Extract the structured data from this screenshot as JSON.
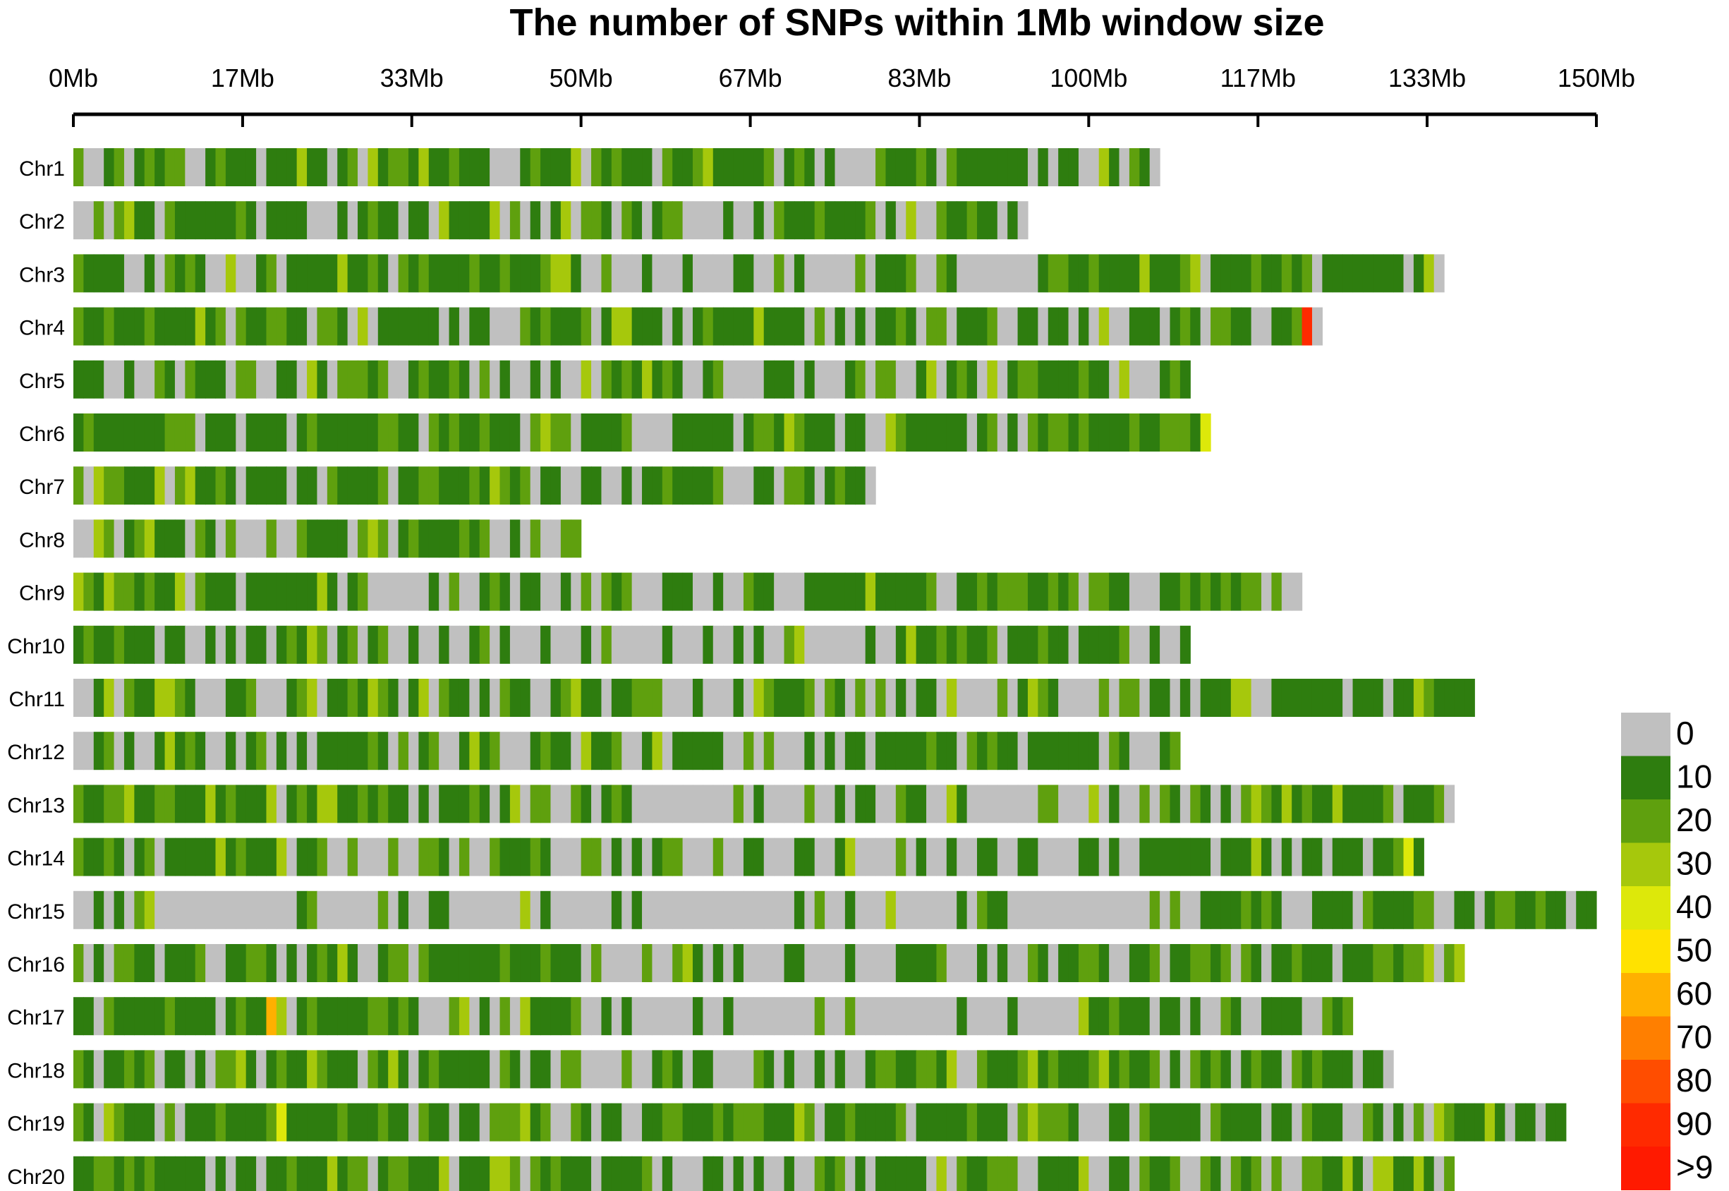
{
  "chart_data": {
    "type": "heatmap",
    "title": "The number of SNPs within 1Mb window size",
    "xlabel": "",
    "ylabel": "",
    "x_ticks": [
      "0Mb",
      "17Mb",
      "33Mb",
      "50Mb",
      "67Mb",
      "83Mb",
      "100Mb",
      "117Mb",
      "133Mb",
      "150Mb"
    ],
    "x_tick_values": [
      0,
      16.67,
      33.33,
      50,
      66.67,
      83.33,
      100,
      116.67,
      133.33,
      150
    ],
    "xlim": [
      0,
      150
    ],
    "bin_size_mb": 1,
    "chromosomes": [
      {
        "name": "Chr1",
        "length_mb": 107
      },
      {
        "name": "Chr2",
        "length_mb": 94
      },
      {
        "name": "Chr3",
        "length_mb": 135
      },
      {
        "name": "Chr4",
        "length_mb": 123
      },
      {
        "name": "Chr5",
        "length_mb": 110
      },
      {
        "name": "Chr6",
        "length_mb": 112
      },
      {
        "name": "Chr7",
        "length_mb": 79
      },
      {
        "name": "Chr8",
        "length_mb": 50
      },
      {
        "name": "Chr9",
        "length_mb": 121
      },
      {
        "name": "Chr10",
        "length_mb": 110
      },
      {
        "name": "Chr11",
        "length_mb": 138
      },
      {
        "name": "Chr12",
        "length_mb": 109
      },
      {
        "name": "Chr13",
        "length_mb": 136
      },
      {
        "name": "Chr14",
        "length_mb": 133
      },
      {
        "name": "Chr15",
        "length_mb": 150
      },
      {
        "name": "Chr16",
        "length_mb": 137
      },
      {
        "name": "Chr17",
        "length_mb": 126
      },
      {
        "name": "Chr18",
        "length_mb": 130
      },
      {
        "name": "Chr19",
        "length_mb": 147
      },
      {
        "name": "Chr20",
        "length_mb": 136
      }
    ],
    "notable_bins": [
      {
        "chromosome": "Chr4",
        "position_mb": 121,
        "snp_count": 90
      },
      {
        "chromosome": "Chr17",
        "position_mb": 19,
        "snp_count": 60
      },
      {
        "chromosome": "Chr6",
        "position_mb": 80,
        "snp_count": 30
      },
      {
        "chromosome": "Chr6",
        "position_mb": 111,
        "snp_count": 40
      },
      {
        "chromosome": "Chr14",
        "position_mb": 131,
        "snp_count": 40
      },
      {
        "chromosome": "Chr16",
        "position_mb": 136,
        "snp_count": 30
      },
      {
        "chromosome": "Chr19",
        "position_mb": 20,
        "snp_count": 40
      }
    ],
    "legend": {
      "labels": [
        "0",
        "10",
        "20",
        "30",
        "40",
        "50",
        "60",
        "70",
        "80",
        "90",
        ">9"
      ],
      "colors": [
        "#c0c0c0",
        "#2e7d0f",
        "#5fa00e",
        "#a6c80c",
        "#dde80a",
        "#ffe200",
        "#ffb000",
        "#ff7f00",
        "#ff4d00",
        "#ff2a00",
        "#ff1a00"
      ]
    }
  }
}
